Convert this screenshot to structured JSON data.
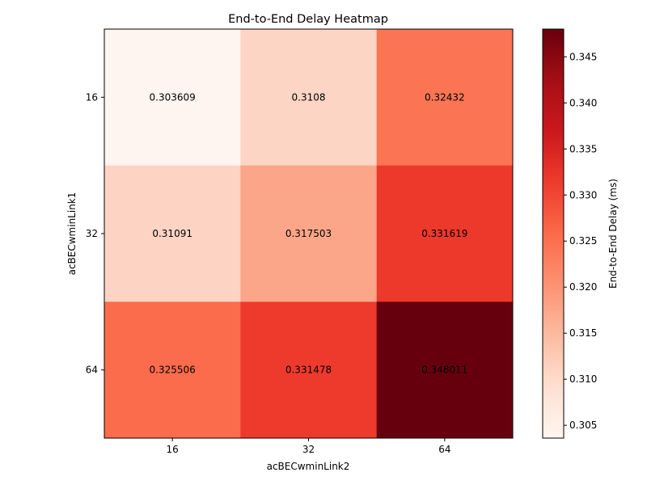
{
  "chart_data": {
    "type": "heatmap",
    "title": "End-to-End Delay Heatmap",
    "xlabel": "acBECwminLink2",
    "ylabel": "acBECwminLink1",
    "x_categories": [
      "16",
      "32",
      "64"
    ],
    "y_categories": [
      "16",
      "32",
      "64"
    ],
    "values": [
      [
        0.303609,
        0.3108,
        0.32432
      ],
      [
        0.31091,
        0.317503,
        0.331619
      ],
      [
        0.325506,
        0.331478,
        0.348011
      ]
    ],
    "value_labels": [
      [
        "0.303609",
        "0.3108",
        "0.32432"
      ],
      [
        "0.31091",
        "0.317503",
        "0.331619"
      ],
      [
        "0.325506",
        "0.331478",
        "0.348011"
      ]
    ],
    "colormap": "Reds",
    "vmin": 0.303609,
    "vmax": 0.348011,
    "colorbar": {
      "label": "End-to-End Delay (ms)",
      "ticks": [
        0.305,
        0.31,
        0.315,
        0.32,
        0.325,
        0.33,
        0.335,
        0.34,
        0.345
      ],
      "tick_labels": [
        "0.305",
        "0.310",
        "0.315",
        "0.320",
        "0.325",
        "0.330",
        "0.335",
        "0.340",
        "0.345"
      ]
    },
    "grid": false
  }
}
